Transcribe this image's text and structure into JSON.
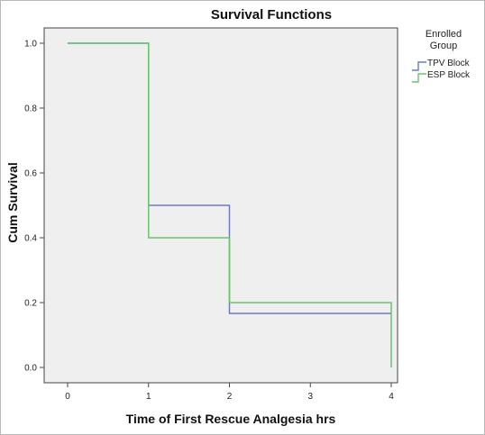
{
  "chart_data": {
    "type": "line",
    "step": true,
    "title": "Survival Functions",
    "xlabel": "Time of First Rescue Analgesia hrs",
    "ylabel": "Cum Survival",
    "xlim": [
      0,
      4
    ],
    "ylim": [
      0.0,
      1.0
    ],
    "xticks": [
      0,
      1,
      2,
      3,
      4
    ],
    "yticks": [
      0.0,
      0.2,
      0.4,
      0.6,
      0.8,
      1.0
    ],
    "ytick_labels": [
      "0.0",
      "0.2",
      "0.4",
      "0.6",
      "0.8",
      "1.0"
    ],
    "grid": false,
    "background": "#efefef",
    "legend": {
      "title_lines": [
        "Enrolled",
        "Group"
      ],
      "placement": "top-right, outside plot"
    },
    "series": [
      {
        "name": "TPV Block",
        "color": "#6a7bbf",
        "x": [
          0,
          1,
          2,
          4
        ],
        "y": [
          1.0,
          0.5,
          0.1667,
          0.1667
        ]
      },
      {
        "name": "ESP Block",
        "color": "#6cc36c",
        "x": [
          0,
          1,
          2,
          4
        ],
        "y": [
          1.0,
          0.4,
          0.2,
          0.2
        ],
        "drop_at_end": 0.0
      }
    ]
  }
}
